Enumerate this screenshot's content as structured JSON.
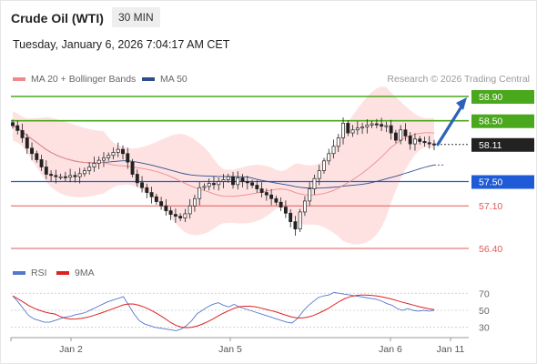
{
  "header": {
    "title": "Crude Oil (WTI)",
    "timeframe": "30 MIN",
    "datetime": "Tuesday, January 6, 2026 7:04:17 AM CET"
  },
  "legend": {
    "ma20_label": "MA 20 + Bollinger Bands",
    "ma50_label": "MA 50",
    "credit": "Research © 2026 Trading Central",
    "rsi_label": "RSI",
    "rsi_ma_label": "9MA"
  },
  "colors": {
    "green": "#4aa81c",
    "blue": "#1f5bd6",
    "red": "#e05a5a",
    "ma20": "#f08a8a",
    "band": "#fdd8d8",
    "ma50": "#2b4e8c",
    "rsi": "#5577cc",
    "rsi_ma": "#dd2222",
    "current": "#222222"
  },
  "chart_data": [
    {
      "type": "candlestick",
      "title": "Crude Oil (WTI)",
      "timeframe": "30 MIN",
      "x_ticks": [
        "Jan 2",
        "Jan 5",
        "Jan 6",
        "Jan 11"
      ],
      "ylim": [
        56.3,
        59.0
      ],
      "grid": false,
      "current_price": 58.11,
      "levels": [
        {
          "value": 58.9,
          "label": "58.90",
          "kind": "target"
        },
        {
          "value": 58.5,
          "label": "58.50",
          "kind": "target"
        },
        {
          "value": 57.5,
          "label": "57.50",
          "kind": "pivot"
        },
        {
          "value": 57.1,
          "label": "57.10",
          "kind": "support"
        },
        {
          "value": 56.4,
          "label": "56.40",
          "kind": "support"
        }
      ],
      "indicators": [
        "MA 20 + Bollinger Bands",
        "MA 50"
      ],
      "close": [
        58.42,
        58.34,
        58.22,
        58.05,
        57.96,
        57.86,
        57.74,
        57.62,
        57.6,
        57.58,
        57.58,
        57.57,
        57.6,
        57.58,
        57.63,
        57.68,
        57.74,
        57.8,
        57.85,
        57.89,
        57.93,
        57.98,
        58.03,
        57.96,
        57.82,
        57.62,
        57.48,
        57.4,
        57.32,
        57.25,
        57.17,
        57.1,
        57.02,
        56.96,
        56.93,
        56.9,
        56.97,
        57.1,
        57.22,
        57.4,
        57.42,
        57.47,
        57.45,
        57.5,
        57.53,
        57.58,
        57.45,
        57.56,
        57.5,
        57.48,
        57.44,
        57.38,
        57.32,
        57.28,
        57.22,
        57.16,
        57.08,
        56.98,
        56.84,
        56.72,
        57.0,
        57.18,
        57.38,
        57.55,
        57.68,
        57.84,
        57.96,
        58.08,
        58.22,
        58.46,
        58.3,
        58.35,
        58.38,
        58.4,
        58.43,
        58.45,
        58.44,
        58.41,
        58.42,
        58.3,
        58.18,
        58.35,
        58.25,
        58.12,
        58.2,
        58.16,
        58.14,
        58.12,
        58.11
      ]
    },
    {
      "type": "line",
      "title": "RSI",
      "series": [
        {
          "name": "RSI"
        },
        {
          "name": "9MA"
        }
      ],
      "ylim": [
        20,
        80
      ],
      "y_ticks": [
        70,
        50,
        30
      ],
      "rsi": [
        67,
        60,
        52,
        44,
        40,
        38,
        36,
        36,
        38,
        40,
        42,
        43,
        45,
        46,
        48,
        51,
        54,
        57,
        60,
        62,
        64,
        66,
        56,
        46,
        38,
        34,
        32,
        30,
        29,
        28,
        27,
        26,
        28,
        32,
        38,
        46,
        50,
        54,
        57,
        59,
        56,
        54,
        57,
        54,
        52,
        50,
        48,
        46,
        44,
        42,
        40,
        38,
        36,
        35,
        40,
        48,
        55,
        60,
        65,
        67,
        68,
        71,
        70,
        69,
        68,
        67,
        66,
        65,
        64,
        63,
        61,
        58,
        56,
        52,
        50,
        52,
        50,
        49,
        50,
        49,
        50
      ]
    }
  ]
}
